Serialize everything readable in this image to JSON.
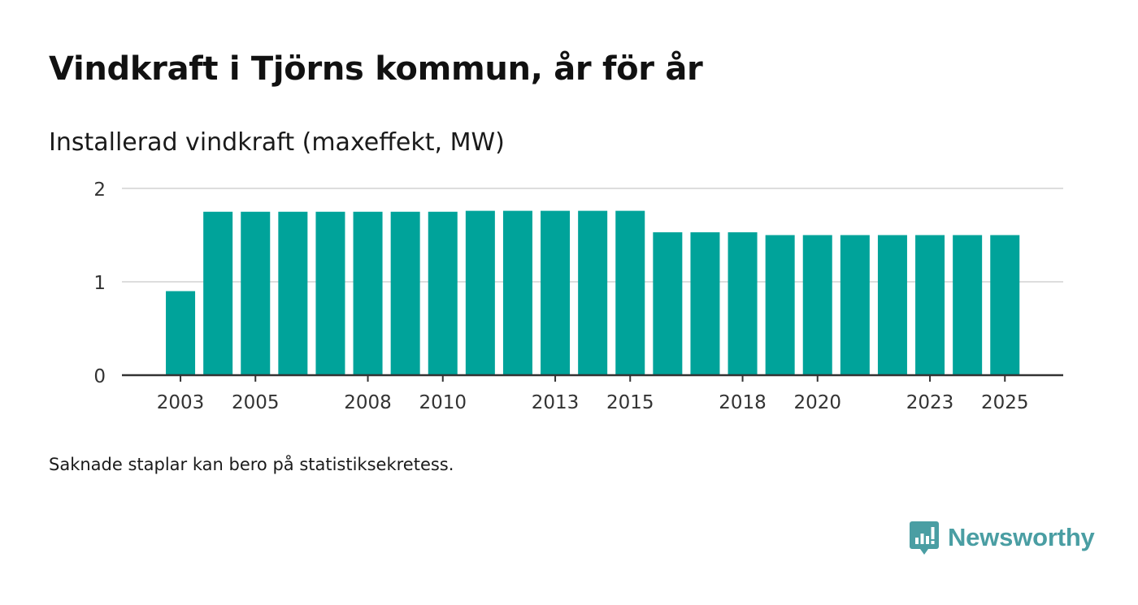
{
  "title": "Vindkraft i Tjörns kommun, år för år",
  "subtitle": "Installerad vindkraft (maxeffekt, MW)",
  "footnote": "Saknade staplar kan bero på statistiksekretess.",
  "brand": {
    "name": "Newsworthy",
    "icon": "newsworthy-logo-icon"
  },
  "colors": {
    "bar": "#00a39a",
    "grid": "#dddddd",
    "axis": "#333333",
    "brand": "#4a9ea3"
  },
  "chart_data": {
    "type": "bar",
    "title": "Vindkraft i Tjörns kommun, år för år",
    "ylabel": "Installerad vindkraft (maxeffekt, MW)",
    "xlabel": "",
    "ylim": [
      0,
      2
    ],
    "yticks": [
      0,
      1,
      2
    ],
    "grid": true,
    "categories": [
      2003,
      2004,
      2005,
      2006,
      2007,
      2008,
      2009,
      2010,
      2011,
      2012,
      2013,
      2014,
      2015,
      2016,
      2017,
      2018,
      2019,
      2020,
      2021,
      2022,
      2023,
      2024,
      2025
    ],
    "values": [
      0.9,
      1.75,
      1.75,
      1.75,
      1.75,
      1.75,
      1.75,
      1.75,
      1.76,
      1.76,
      1.76,
      1.76,
      1.76,
      1.53,
      1.53,
      1.53,
      1.5,
      1.5,
      1.5,
      1.5,
      1.5,
      1.5,
      1.5
    ],
    "xtick_labels": [
      "2003",
      "2005",
      "2008",
      "2010",
      "2013",
      "2015",
      "2018",
      "2020",
      "2023",
      "2025"
    ]
  }
}
